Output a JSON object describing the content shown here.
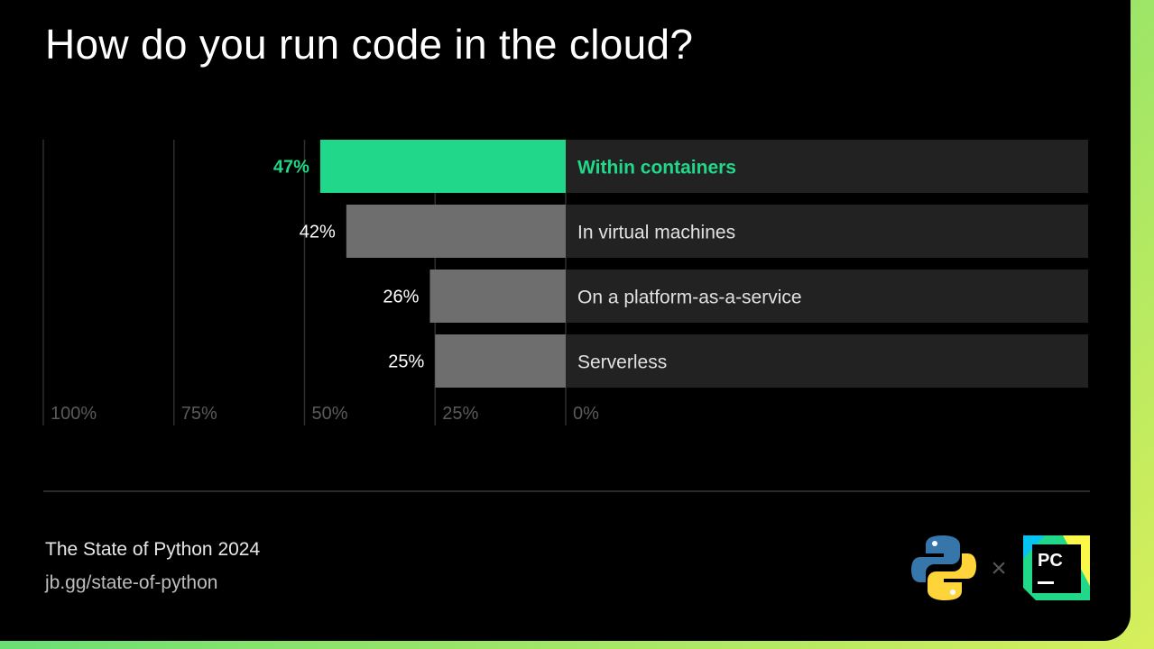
{
  "title": "How do you run code in the cloud?",
  "footer": {
    "title": "The State of Python 2024",
    "url": "jb.gg/state-of-python"
  },
  "logos": {
    "python_icon": "python-logo",
    "times": "×",
    "pycharm_text": "PC"
  },
  "colors": {
    "background": "#000000",
    "highlight": "#21d789",
    "bar_default": "#6e6e6e",
    "track": "#222222",
    "label_default": "#e0e0e0",
    "axis_label": "#5a5a5a"
  },
  "chart_data": {
    "type": "bar",
    "orientation": "horizontal",
    "direction": "right-to-left",
    "categories": [
      "Within containers",
      "In virtual machines",
      "On a platform-as-a-service",
      "Serverless"
    ],
    "values": [
      47,
      42,
      26,
      25
    ],
    "value_labels": [
      "47%",
      "42%",
      "26%",
      "25%"
    ],
    "highlight_index": 0,
    "xlim": [
      0,
      100
    ],
    "x_ticks": [
      "100%",
      "75%",
      "50%",
      "25%",
      "0%"
    ],
    "grid": true
  }
}
